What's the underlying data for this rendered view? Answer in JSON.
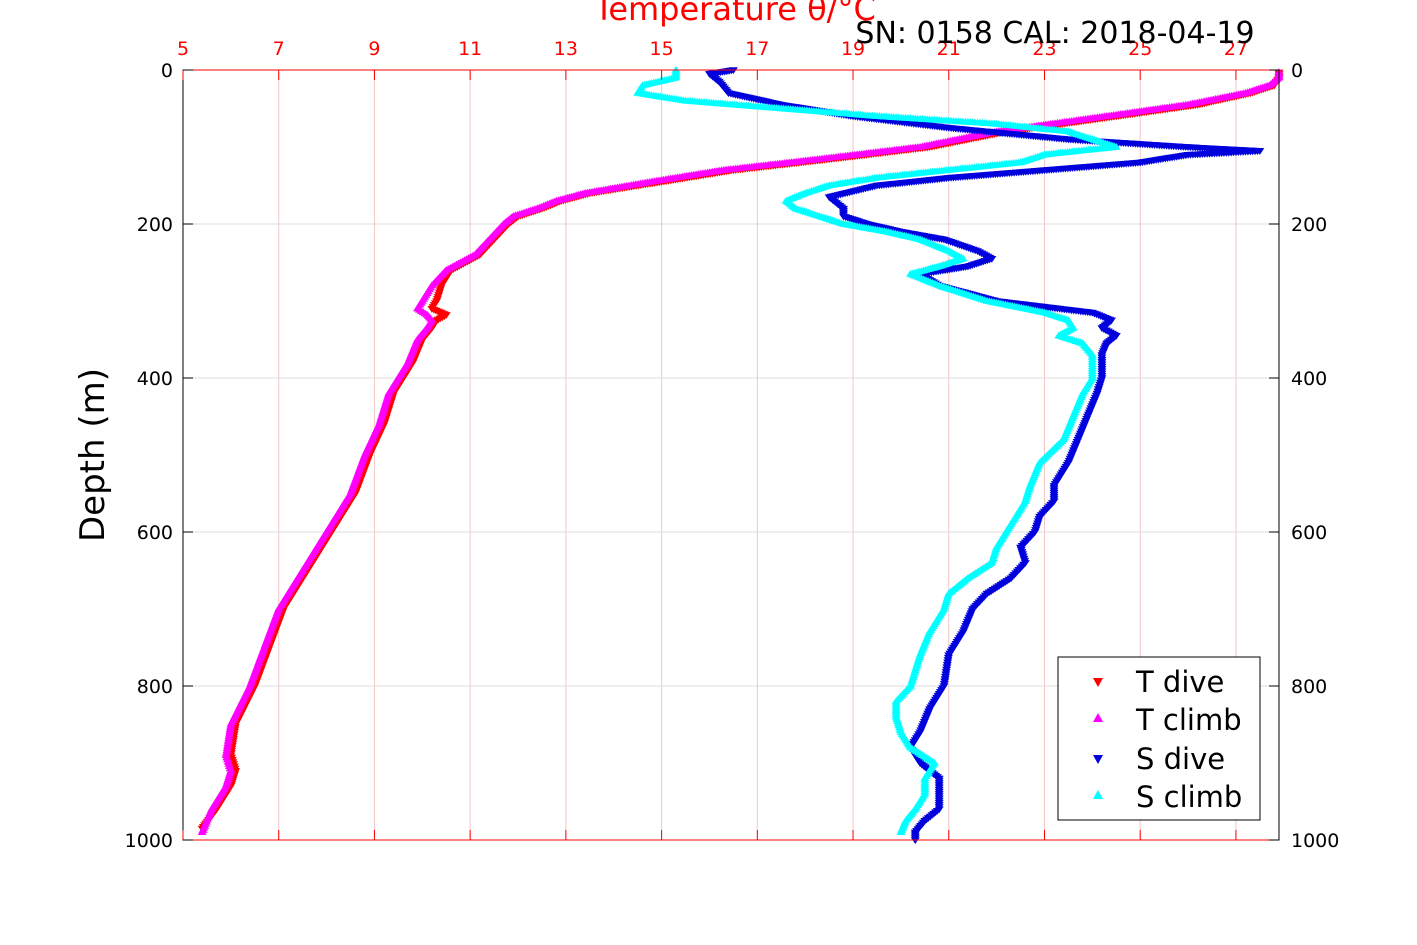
{
  "figure": {
    "title": "Temperature θ/°C",
    "info": "SN: 0158  CAL: 2018-04-19"
  },
  "colors": {
    "t_dive": "#ff0000",
    "t_climb": "#ff00ff",
    "s_dive": "#0000dd",
    "s_climb": "#00ffff",
    "top_axis": "#ff0000",
    "grid_red": "#f3c6c6",
    "grid_gray": "#dcdcdc"
  },
  "chart_data": {
    "type": "scatter",
    "title": "Temperature θ/°C",
    "ylabel": "Depth (m)",
    "x_top_range": [
      5,
      27.9
    ],
    "x_top_ticks": [
      "5",
      "7",
      "9",
      "11",
      "13",
      "15",
      "17",
      "19",
      "21",
      "23",
      "25",
      "27"
    ],
    "y_range": [
      0,
      1000
    ],
    "y_reversed": true,
    "y_ticks": [
      "0",
      "200",
      "400",
      "600",
      "800",
      "1000"
    ],
    "grid": true,
    "legend_position": "bottom-right",
    "legend": [
      "T dive",
      "T climb",
      "S dive",
      "S climb"
    ],
    "series": [
      {
        "name": "T dive",
        "marker": "triangle-down",
        "depth": [
          3,
          10,
          20,
          30,
          45,
          60,
          80,
          100,
          115,
          130,
          145,
          160,
          170,
          180,
          190,
          200,
          220,
          240,
          260,
          280,
          300,
          310,
          318,
          325,
          335,
          350,
          380,
          420,
          460,
          500,
          550,
          600,
          650,
          700,
          750,
          800,
          850,
          890,
          910,
          930,
          960,
          985
        ],
        "values": [
          27.9,
          27.9,
          27.8,
          27.3,
          26.2,
          24.5,
          22.2,
          20.6,
          18.6,
          16.5,
          15.0,
          13.5,
          12.9,
          12.5,
          12.0,
          11.8,
          11.5,
          11.2,
          10.6,
          10.4,
          10.3,
          10.2,
          10.5,
          10.3,
          10.2,
          10.0,
          9.8,
          9.4,
          9.2,
          8.9,
          8.6,
          8.1,
          7.6,
          7.1,
          6.8,
          6.5,
          6.1,
          6.0,
          6.1,
          6.0,
          5.7,
          5.4
        ]
      },
      {
        "name": "T climb",
        "marker": "triangle-up",
        "depth": [
          3,
          10,
          20,
          30,
          45,
          60,
          80,
          100,
          115,
          130,
          145,
          160,
          170,
          180,
          190,
          200,
          220,
          240,
          260,
          280,
          300,
          310,
          318,
          325,
          335,
          350,
          380,
          420,
          460,
          500,
          550,
          600,
          650,
          700,
          750,
          800,
          850,
          890,
          910,
          930,
          960,
          990
        ],
        "values": [
          27.9,
          27.9,
          27.7,
          27.2,
          26.0,
          24.3,
          22.0,
          20.4,
          18.4,
          16.3,
          14.8,
          13.4,
          12.8,
          12.4,
          11.9,
          11.7,
          11.4,
          11.1,
          10.5,
          10.2,
          10.0,
          9.9,
          10.1,
          10.2,
          10.1,
          9.9,
          9.7,
          9.3,
          9.1,
          8.8,
          8.5,
          8.0,
          7.5,
          7.0,
          6.7,
          6.4,
          6.0,
          5.9,
          6.0,
          5.9,
          5.6,
          5.4
        ]
      },
      {
        "name": "S dive",
        "marker": "triangle-down",
        "depth": [
          0,
          5,
          15,
          30,
          45,
          60,
          75,
          90,
          100,
          105,
          110,
          120,
          130,
          140,
          150,
          165,
          180,
          190,
          200,
          210,
          220,
          235,
          245,
          255,
          265,
          280,
          300,
          315,
          325,
          335,
          345,
          355,
          370,
          400,
          420,
          450,
          480,
          510,
          540,
          560,
          580,
          600,
          620,
          640,
          660,
          680,
          700,
          730,
          760,
          800,
          830,
          860,
          880,
          900,
          920,
          940,
          960,
          975,
          990,
          1000
        ],
        "values": [
          16.5,
          16.0,
          16.2,
          16.4,
          17.5,
          19.0,
          21.0,
          23.5,
          26.0,
          27.5,
          26.0,
          25.0,
          23.0,
          21.0,
          19.5,
          18.5,
          18.8,
          18.8,
          19.3,
          20.0,
          20.9,
          21.6,
          21.9,
          21.4,
          20.4,
          20.8,
          22.0,
          24.0,
          24.4,
          24.2,
          24.5,
          24.3,
          24.2,
          24.2,
          24.1,
          23.9,
          23.7,
          23.5,
          23.2,
          23.2,
          22.9,
          22.8,
          22.5,
          22.6,
          22.3,
          21.8,
          21.5,
          21.3,
          21.0,
          20.9,
          20.6,
          20.4,
          20.2,
          20.4,
          20.8,
          20.8,
          20.8,
          20.5,
          20.3,
          20.3
        ]
      },
      {
        "name": "S climb",
        "marker": "triangle-up",
        "depth": [
          0,
          10,
          20,
          30,
          40,
          50,
          60,
          70,
          80,
          90,
          100,
          110,
          120,
          130,
          140,
          150,
          160,
          170,
          180,
          190,
          200,
          210,
          220,
          235,
          245,
          255,
          265,
          280,
          300,
          315,
          325,
          335,
          345,
          355,
          370,
          400,
          420,
          450,
          480,
          510,
          540,
          560,
          580,
          600,
          620,
          640,
          660,
          680,
          700,
          730,
          760,
          800,
          820,
          840,
          860,
          880,
          900,
          920,
          940,
          960,
          975,
          990
        ],
        "values": [
          15.3,
          15.3,
          14.6,
          14.5,
          15.5,
          17.5,
          19.5,
          22.0,
          23.5,
          24.0,
          24.5,
          23.0,
          22.5,
          21.0,
          19.5,
          18.5,
          18.0,
          17.6,
          17.8,
          18.3,
          18.8,
          19.7,
          20.4,
          21.0,
          21.3,
          20.8,
          20.2,
          20.8,
          21.8,
          23.0,
          23.5,
          23.6,
          23.3,
          23.8,
          24.0,
          24.0,
          23.8,
          23.6,
          23.4,
          22.9,
          22.7,
          22.6,
          22.4,
          22.2,
          22.0,
          21.9,
          21.4,
          21.0,
          20.9,
          20.6,
          20.4,
          20.2,
          19.9,
          19.9,
          20.0,
          20.2,
          20.7,
          20.5,
          20.5,
          20.3,
          20.1,
          20.0
        ]
      }
    ]
  }
}
